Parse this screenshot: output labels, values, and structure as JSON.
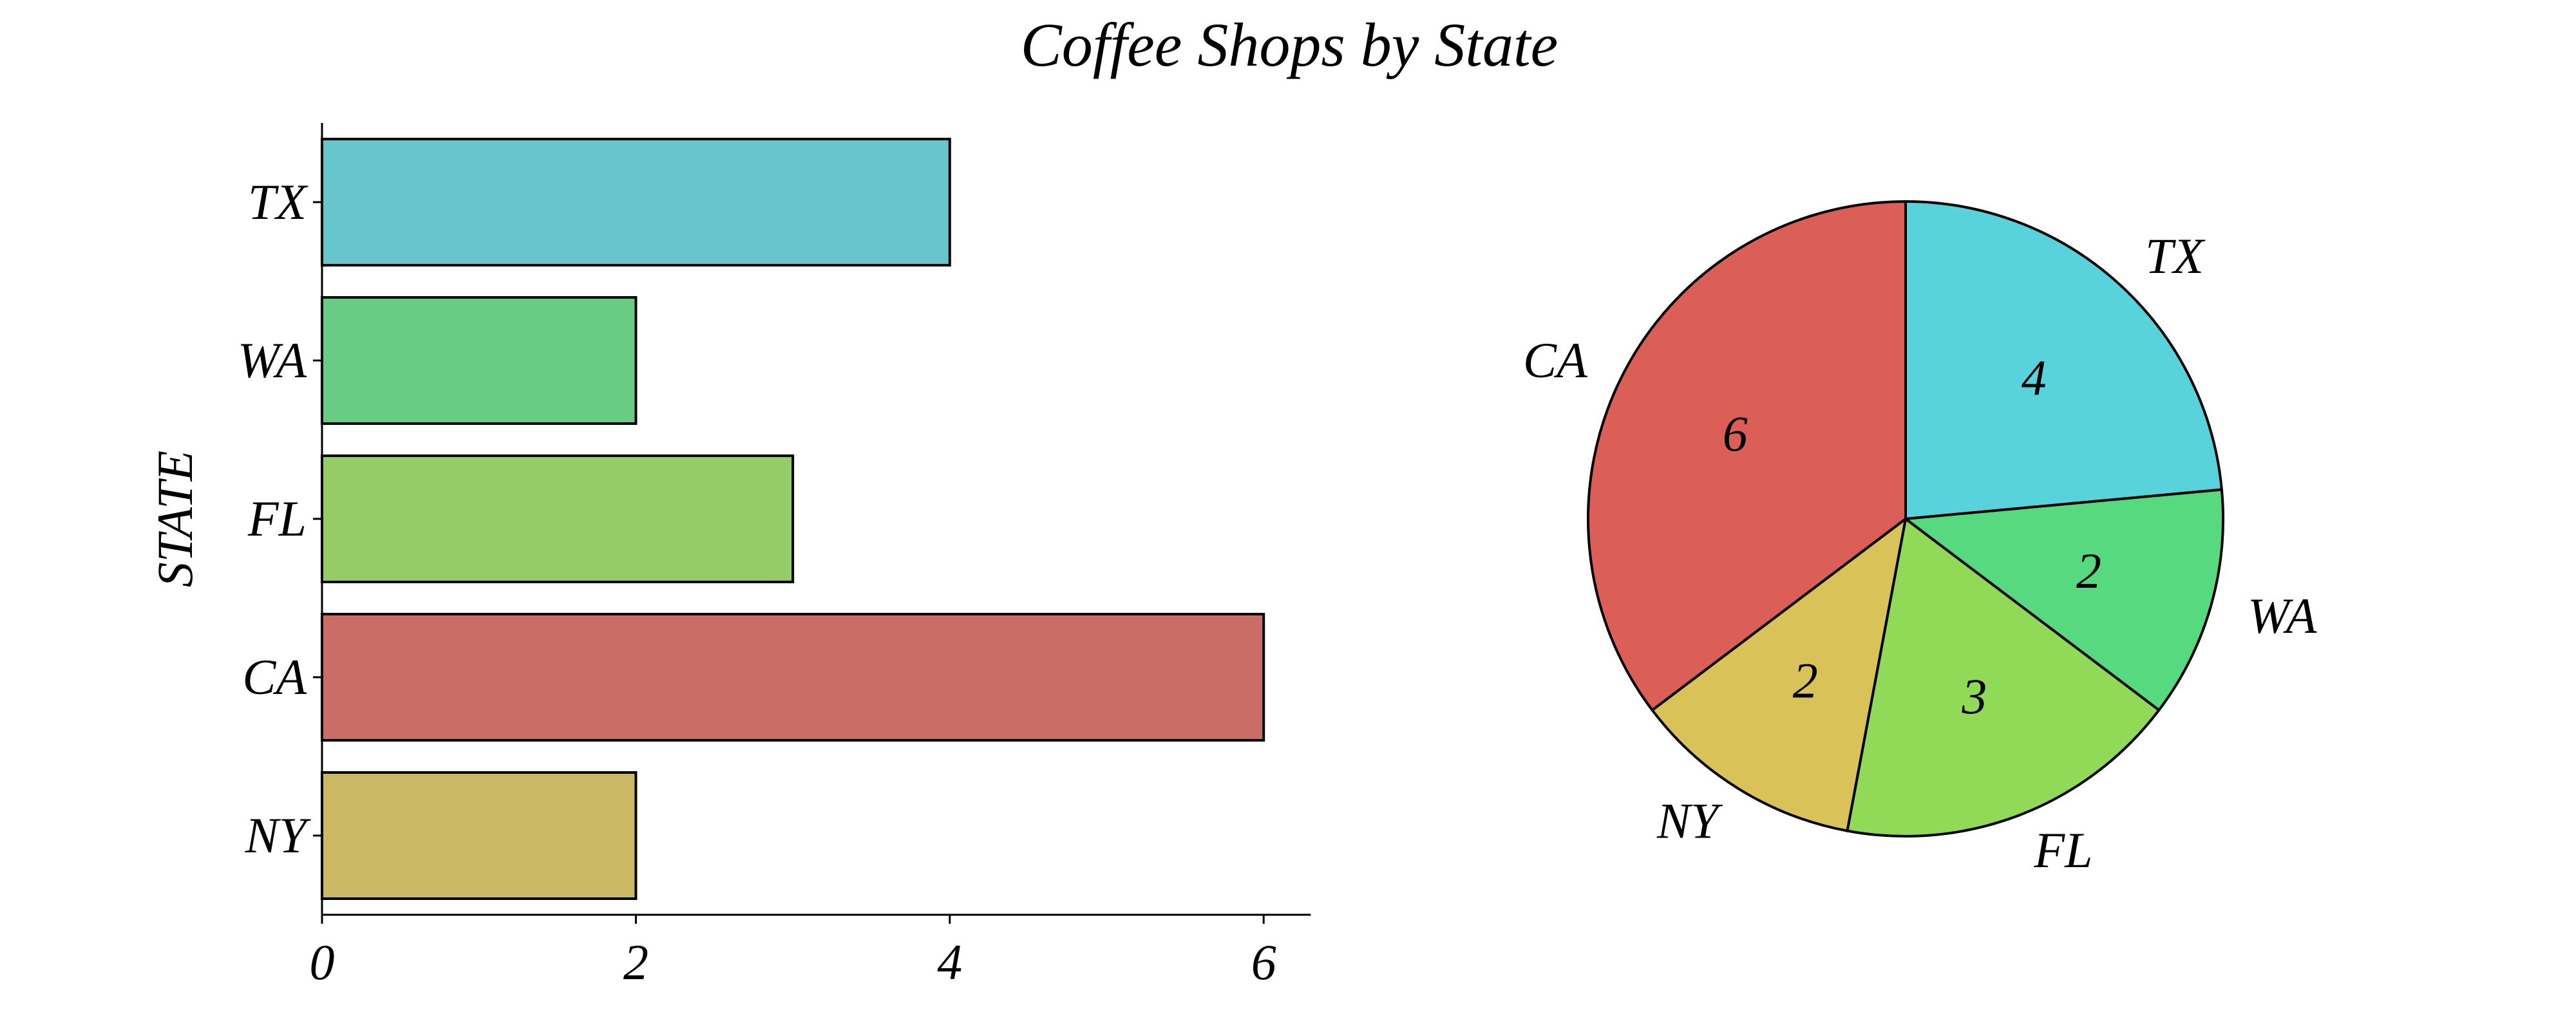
{
  "chart_data": [
    {
      "type": "bar",
      "orientation": "horizontal",
      "title": "Coffee Shops by State",
      "xlabel": "",
      "ylabel": "STATE",
      "categories": [
        "TX",
        "WA",
        "FL",
        "CA",
        "NY"
      ],
      "values": [
        4,
        2,
        3,
        6,
        2
      ],
      "xticks": [
        "0",
        "2",
        "4",
        "6"
      ],
      "xlim": [
        0,
        6.3
      ],
      "grid": false,
      "colors": [
        "#69c5cc",
        "#68cc85",
        "#95cc68",
        "#cb6d67",
        "#cab865"
      ]
    },
    {
      "type": "pie",
      "categories": [
        "TX",
        "WA",
        "FL",
        "NY",
        "CA"
      ],
      "values": [
        4,
        2,
        3,
        2,
        6
      ],
      "value_labels": [
        "4",
        "2",
        "3",
        "2",
        "6"
      ],
      "start": "top",
      "direction": "clockwise",
      "colors": [
        "#58d3db",
        "#57d980",
        "#91da57",
        "#d9c257",
        "#db5f57"
      ]
    }
  ]
}
